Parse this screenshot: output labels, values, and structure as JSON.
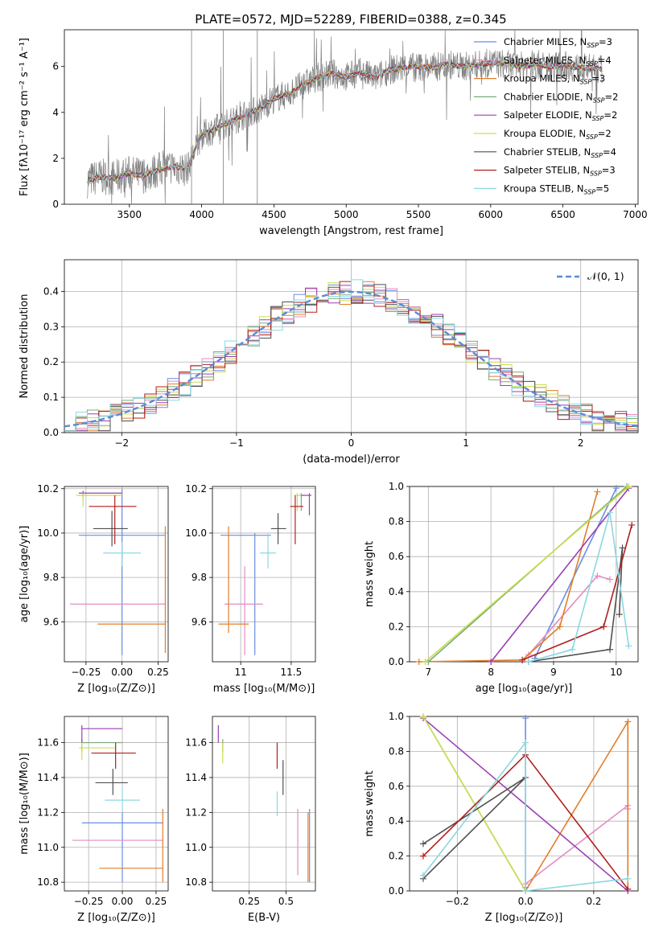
{
  "figure_title": "PLATE=0572, MJD=52289, FIBERID=0388, z=0.345",
  "colors": {
    "Chabrier MILES": "#6a8ee0",
    "Salpeter MILES": "#e58bc2",
    "Kroupa MILES": "#e07e2a",
    "Chabrier ELODIE": "#7aa87a",
    "Salpeter ELODIE": "#9a3fb3",
    "Kroupa ELODIE": "#c9e04e",
    "Chabrier STELIB": "#505050",
    "Salpeter STELIB": "#b01f1f",
    "Kroupa STELIB": "#8ad8e0",
    "normal": "#5b8ad8",
    "spectrum": "#808080"
  },
  "legend_spectrum": [
    {
      "name": "Chabrier MILES",
      "nssp": "3"
    },
    {
      "name": "Salpeter MILES",
      "nssp": "4"
    },
    {
      "name": "Kroupa MILES",
      "nssp": "3"
    },
    {
      "name": "Chabrier ELODIE",
      "nssp": "2"
    },
    {
      "name": "Salpeter ELODIE",
      "nssp": "2"
    },
    {
      "name": "Kroupa ELODIE",
      "nssp": "2"
    },
    {
      "name": "Chabrier STELIB",
      "nssp": "4"
    },
    {
      "name": "Salpeter STELIB",
      "nssp": "3"
    },
    {
      "name": "Kroupa STELIB",
      "nssp": "5"
    }
  ],
  "legend_normal": "𝒩(0, 1)",
  "chart_data": [
    {
      "id": "spectrum",
      "type": "line",
      "xlabel": "wavelength [Angstrom, rest frame]",
      "ylabel": "Flux [fλ10⁻¹⁷ erg cm⁻² s⁻¹ A⁻¹]",
      "xlim": [
        3050,
        7020
      ],
      "ylim": [
        0,
        7.6
      ],
      "xticks": [
        3500,
        4000,
        4500,
        5000,
        5500,
        6000,
        6500,
        7000
      ],
      "yticks": [
        0,
        2,
        4,
        6
      ],
      "continuum": [
        [
          3210,
          1.05
        ],
        [
          3300,
          1.2
        ],
        [
          3400,
          1.15
        ],
        [
          3500,
          1.35
        ],
        [
          3600,
          1.25
        ],
        [
          3700,
          1.5
        ],
        [
          3800,
          1.65
        ],
        [
          3900,
          1.5
        ],
        [
          3950,
          2.3
        ],
        [
          4000,
          3.0
        ],
        [
          4100,
          3.3
        ],
        [
          4200,
          3.6
        ],
        [
          4300,
          3.9
        ],
        [
          4400,
          4.15
        ],
        [
          4500,
          4.6
        ],
        [
          4600,
          4.8
        ],
        [
          4700,
          5.2
        ],
        [
          4800,
          5.5
        ],
        [
          4900,
          5.7
        ],
        [
          5000,
          5.55
        ],
        [
          5100,
          5.75
        ],
        [
          5200,
          5.5
        ],
        [
          5300,
          5.85
        ],
        [
          5400,
          5.95
        ],
        [
          5500,
          6.0
        ],
        [
          5600,
          5.95
        ],
        [
          5700,
          6.1
        ],
        [
          5800,
          6.0
        ],
        [
          5900,
          6.05
        ],
        [
          6000,
          6.15
        ],
        [
          6100,
          6.1
        ],
        [
          6200,
          6.0
        ],
        [
          6300,
          6.1
        ],
        [
          6400,
          6.0
        ],
        [
          6500,
          6.05
        ],
        [
          6600,
          5.95
        ],
        [
          6700,
          5.9
        ],
        [
          6770,
          5.9
        ]
      ]
    },
    {
      "id": "residuals",
      "type": "line",
      "xlabel": "(data-model)/error",
      "ylabel": "Normed distribution",
      "xlim": [
        -2.5,
        2.5
      ],
      "ylim": [
        0,
        0.49
      ],
      "xticks": [
        -2,
        -1,
        0,
        1,
        2
      ],
      "yticks": [
        0.0,
        0.1,
        0.2,
        0.3,
        0.4
      ],
      "series": [
        {
          "name": "𝒩(0, 1)",
          "values": "standard normal pdf"
        }
      ]
    },
    {
      "id": "age_vs_Z",
      "type": "scatter",
      "xlabel": "Z [log₁₀(Z/Z⊙)]",
      "ylabel": "age  [log₁₀(age/yr)]",
      "xlim": [
        -0.4,
        0.32
      ],
      "ylim": [
        9.42,
        10.21
      ],
      "xticks": [
        -0.25,
        0.0,
        0.25
      ],
      "yticks": [
        9.6,
        9.8,
        10.0,
        10.2
      ],
      "xticklabels": [
        "−0.25",
        "0.00",
        "0.25"
      ],
      "points": [
        {
          "m": "Chabrier MILES",
          "x": 0.0,
          "y": 9.99,
          "xl": -0.3,
          "xh": 0.3,
          "yl": 9.45,
          "yh": 10.2
        },
        {
          "m": "Salpeter MILES",
          "x": 0.0,
          "y": 9.68,
          "xl": -0.36,
          "xh": 0.3,
          "yl": 9.68,
          "yh": 9.68
        },
        {
          "m": "Kroupa MILES",
          "x": 0.3,
          "y": 9.59,
          "xl": -0.17,
          "xh": 0.3,
          "yl": 9.46,
          "yh": 10.03
        },
        {
          "m": "Chabrier ELODIE",
          "x": -0.27,
          "y": 10.17,
          "xl": -0.3,
          "xh": 0.0,
          "yl": 10.16,
          "yh": 10.18
        },
        {
          "m": "Salpeter ELODIE",
          "x": -0.27,
          "y": 10.18,
          "xl": -0.3,
          "xh": 0.0,
          "yl": 10.17,
          "yh": 10.19
        },
        {
          "m": "Kroupa ELODIE",
          "x": -0.27,
          "y": 10.17,
          "xl": -0.32,
          "xh": 0.0,
          "yl": 10.12,
          "yh": 10.18
        },
        {
          "m": "Chabrier STELIB",
          "x": -0.07,
          "y": 10.02,
          "xl": -0.2,
          "xh": 0.04,
          "yl": 9.94,
          "yh": 10.1
        },
        {
          "m": "Salpeter STELIB",
          "x": -0.05,
          "y": 10.12,
          "xl": -0.23,
          "xh": 0.1,
          "yl": 9.95,
          "yh": 10.17
        },
        {
          "m": "Kroupa STELIB",
          "x": 0.0,
          "y": 9.91,
          "xl": -0.13,
          "xh": 0.13,
          "yl": 9.85,
          "yh": 9.96
        }
      ]
    },
    {
      "id": "age_vs_mass",
      "type": "scatter",
      "xlabel": "mass [log₁₀(M/M⊙)]",
      "ylabel": "",
      "xlim": [
        10.72,
        11.74
      ],
      "ylim": [
        9.42,
        10.21
      ],
      "xticks": [
        11.0,
        11.5
      ],
      "yticks": [
        9.6,
        9.8,
        10.0,
        10.2
      ],
      "points": [
        {
          "m": "Chabrier MILES",
          "x": 11.14,
          "y": 9.99,
          "xl": 10.8,
          "xh": 11.3,
          "yl": 9.45,
          "yh": 10.0
        },
        {
          "m": "Salpeter MILES",
          "x": 11.04,
          "y": 9.68,
          "xl": 10.84,
          "xh": 11.22,
          "yl": 9.45,
          "yh": 9.85
        },
        {
          "m": "Kroupa MILES",
          "x": 10.88,
          "y": 9.59,
          "xl": 10.78,
          "xh": 11.08,
          "yl": 9.55,
          "yh": 10.03
        },
        {
          "m": "Chabrier ELODIE",
          "x": 11.6,
          "y": 10.17,
          "xl": 11.57,
          "xh": 11.63,
          "yl": 10.1,
          "yh": 10.18
        },
        {
          "m": "Salpeter ELODIE",
          "x": 11.68,
          "y": 10.17,
          "xl": 11.6,
          "xh": 11.7,
          "yl": 10.08,
          "yh": 10.18
        },
        {
          "m": "Kroupa ELODIE",
          "x": 11.56,
          "y": 10.17,
          "xl": 11.53,
          "xh": 11.6,
          "yl": 10.1,
          "yh": 10.18
        },
        {
          "m": "Chabrier STELIB",
          "x": 11.37,
          "y": 10.02,
          "xl": 11.3,
          "xh": 11.45,
          "yl": 9.95,
          "yh": 10.09
        },
        {
          "m": "Salpeter STELIB",
          "x": 11.54,
          "y": 10.12,
          "xl": 11.49,
          "xh": 11.62,
          "yl": 9.95,
          "yh": 10.17
        },
        {
          "m": "Kroupa STELIB",
          "x": 11.27,
          "y": 9.91,
          "xl": 11.19,
          "xh": 11.35,
          "yl": 9.84,
          "yh": 10.0
        }
      ]
    },
    {
      "id": "mass_weight_vs_age",
      "type": "line",
      "xlabel": "age  [log₁₀(age/yr)]",
      "ylabel": "mass weight",
      "xlim": [
        6.7,
        10.35
      ],
      "ylim": [
        0,
        1
      ],
      "xticks": [
        7,
        8,
        9,
        10
      ],
      "yticks": [
        0.0,
        0.2,
        0.4,
        0.6,
        0.8,
        1.0
      ],
      "series": [
        {
          "m": "Chabrier MILES",
          "pts": [
            [
              8.7,
              0.02
            ],
            [
              10.0,
              0.99
            ]
          ]
        },
        {
          "m": "Salpeter MILES",
          "pts": [
            [
              8.6,
              0.04
            ],
            [
              9.7,
              0.49
            ],
            [
              9.9,
              0.47
            ]
          ]
        },
        {
          "m": "Kroupa MILES",
          "pts": [
            [
              6.85,
              0.0
            ],
            [
              8.5,
              0.01
            ],
            [
              9.1,
              0.2
            ],
            [
              9.7,
              0.97
            ]
          ]
        },
        {
          "m": "Chabrier ELODIE",
          "pts": [
            [
              7.0,
              0.0
            ],
            [
              10.17,
              1.0
            ]
          ]
        },
        {
          "m": "Salpeter ELODIE",
          "pts": [
            [
              8.0,
              0.0
            ],
            [
              10.2,
              0.99
            ]
          ]
        },
        {
          "m": "Kroupa ELODIE",
          "pts": [
            [
              6.95,
              0.0
            ],
            [
              10.2,
              1.0
            ]
          ]
        },
        {
          "m": "Chabrier STELIB",
          "pts": [
            [
              8.6,
              0.0
            ],
            [
              9.9,
              0.07
            ],
            [
              10.1,
              0.65
            ],
            [
              10.05,
              0.27
            ]
          ]
        },
        {
          "m": "Salpeter STELIB",
          "pts": [
            [
              8.5,
              0.01
            ],
            [
              9.8,
              0.2
            ],
            [
              10.25,
              0.78
            ]
          ]
        },
        {
          "m": "Kroupa STELIB",
          "pts": [
            [
              8.6,
              0.0
            ],
            [
              9.3,
              0.07
            ],
            [
              9.9,
              0.85
            ],
            [
              10.2,
              0.09
            ]
          ]
        }
      ]
    },
    {
      "id": "mass_vs_Z",
      "type": "scatter",
      "xlabel": "Z [log₁₀(Z/Z⊙)]",
      "ylabel": "mass [log₁₀(M/M⊙)]",
      "xlim": [
        -0.43,
        0.34
      ],
      "ylim": [
        10.75,
        11.75
      ],
      "xticks": [
        -0.25,
        0.0,
        0.25
      ],
      "yticks": [
        10.8,
        11.0,
        11.2,
        11.4,
        11.6
      ],
      "xticklabels": [
        "−0.25",
        "0.00",
        "0.25"
      ],
      "points": [
        {
          "m": "Chabrier MILES",
          "x": 0.0,
          "y": 11.14,
          "xl": -0.3,
          "xh": 0.3,
          "yl": 10.8,
          "yh": 11.2
        },
        {
          "m": "Salpeter MILES",
          "x": 0.0,
          "y": 11.04,
          "xl": -0.37,
          "xh": 0.3,
          "yl": 11.04,
          "yh": 11.04
        },
        {
          "m": "Kroupa MILES",
          "x": 0.3,
          "y": 10.88,
          "xl": -0.17,
          "xh": 0.3,
          "yl": 10.8,
          "yh": 11.22
        },
        {
          "m": "Chabrier ELODIE",
          "x": -0.3,
          "y": 11.6,
          "xl": -0.3,
          "xh": 0.0,
          "yl": 11.55,
          "yh": 11.62
        },
        {
          "m": "Salpeter ELODIE",
          "x": -0.3,
          "y": 11.68,
          "xl": -0.3,
          "xh": 0.0,
          "yl": 11.6,
          "yh": 11.7
        },
        {
          "m": "Kroupa ELODIE",
          "x": -0.3,
          "y": 11.57,
          "xl": -0.32,
          "xh": -0.05,
          "yl": 11.5,
          "yh": 11.6
        },
        {
          "m": "Chabrier STELIB",
          "x": -0.07,
          "y": 11.37,
          "xl": -0.2,
          "xh": 0.04,
          "yl": 11.3,
          "yh": 11.45
        },
        {
          "m": "Salpeter STELIB",
          "x": -0.05,
          "y": 11.54,
          "xl": -0.23,
          "xh": 0.1,
          "yl": 11.45,
          "yh": 11.6
        },
        {
          "m": "Kroupa STELIB",
          "x": 0.0,
          "y": 11.27,
          "xl": -0.13,
          "xh": 0.13,
          "yl": 11.2,
          "yh": 11.34
        }
      ]
    },
    {
      "id": "mass_vs_ebv",
      "type": "scatter",
      "xlabel": "E(B-V)",
      "ylabel": "",
      "xlim": [
        0.0,
        0.7
      ],
      "ylim": [
        10.75,
        11.75
      ],
      "xticks": [
        0.25,
        0.5
      ],
      "yticks": [
        10.8,
        11.0,
        11.2,
        11.4,
        11.6
      ],
      "points": [
        {
          "m": "Chabrier MILES",
          "x": 0.66,
          "y": 11.0,
          "xl": 0.66,
          "xh": 0.66,
          "yl": 10.8,
          "yh": 11.22
        },
        {
          "m": "Salpeter MILES",
          "x": 0.58,
          "y": 11.0,
          "xl": 0.58,
          "xh": 0.58,
          "yl": 10.84,
          "yh": 11.22
        },
        {
          "m": "Kroupa MILES",
          "x": 0.65,
          "y": 11.0,
          "xl": 0.65,
          "xh": 0.65,
          "yl": 10.8,
          "yh": 11.2
        },
        {
          "m": "Chabrier ELODIE",
          "x": 0.07,
          "y": 11.6,
          "xl": 0.07,
          "xh": 0.07,
          "yl": 11.55,
          "yh": 11.62
        },
        {
          "m": "Salpeter ELODIE",
          "x": 0.04,
          "y": 11.65,
          "xl": 0.04,
          "xh": 0.04,
          "yl": 11.6,
          "yh": 11.7
        },
        {
          "m": "Kroupa ELODIE",
          "x": 0.07,
          "y": 11.55,
          "xl": 0.07,
          "xh": 0.07,
          "yl": 11.48,
          "yh": 11.6
        },
        {
          "m": "Chabrier STELIB",
          "x": 0.48,
          "y": 11.4,
          "xl": 0.48,
          "xh": 0.48,
          "yl": 11.3,
          "yh": 11.5
        },
        {
          "m": "Salpeter STELIB",
          "x": 0.44,
          "y": 11.5,
          "xl": 0.44,
          "xh": 0.44,
          "yl": 11.45,
          "yh": 11.6
        },
        {
          "m": "Kroupa STELIB",
          "x": 0.44,
          "y": 11.27,
          "xl": 0.44,
          "xh": 0.44,
          "yl": 11.18,
          "yh": 11.32
        }
      ]
    },
    {
      "id": "mass_weight_vs_Z",
      "type": "line",
      "xlabel": "Z [log₁₀(Z/Z⊙)]",
      "ylabel": "mass weight",
      "xlim": [
        -0.34,
        0.33
      ],
      "ylim": [
        0,
        1
      ],
      "xticks": [
        -0.2,
        0.0,
        0.2
      ],
      "yticks": [
        0.0,
        0.2,
        0.4,
        0.6,
        0.8,
        1.0
      ],
      "xticklabels": [
        "−0.2",
        "0.0",
        "0.2"
      ],
      "series": [
        {
          "m": "Chabrier MILES",
          "pts": [
            [
              0.0,
              0.02
            ],
            [
              0.0,
              0.99
            ]
          ]
        },
        {
          "m": "Salpeter MILES",
          "pts": [
            [
              0.0,
              0.04
            ],
            [
              0.3,
              0.49
            ],
            [
              0.3,
              0.47
            ]
          ]
        },
        {
          "m": "Kroupa MILES",
          "pts": [
            [
              0.0,
              0.0
            ],
            [
              0.3,
              0.97
            ],
            [
              0.3,
              0.01
            ]
          ]
        },
        {
          "m": "Chabrier ELODIE",
          "pts": [
            [
              -0.3,
              1.0
            ],
            [
              0.0,
              0.0
            ]
          ]
        },
        {
          "m": "Salpeter ELODIE",
          "pts": [
            [
              -0.3,
              0.99
            ],
            [
              0.3,
              0.0
            ]
          ]
        },
        {
          "m": "Kroupa ELODIE",
          "pts": [
            [
              -0.3,
              1.0
            ],
            [
              0.0,
              0.0
            ]
          ]
        },
        {
          "m": "Chabrier STELIB",
          "pts": [
            [
              -0.3,
              0.07
            ],
            [
              0.0,
              0.65
            ],
            [
              -0.3,
              0.27
            ]
          ]
        },
        {
          "m": "Salpeter STELIB",
          "pts": [
            [
              -0.3,
              0.2
            ],
            [
              0.0,
              0.78
            ],
            [
              0.3,
              0.01
            ]
          ]
        },
        {
          "m": "Kroupa STELIB",
          "pts": [
            [
              -0.3,
              0.09
            ],
            [
              0.0,
              0.85
            ],
            [
              0.0,
              0.0
            ],
            [
              0.3,
              0.07
            ]
          ]
        }
      ]
    }
  ]
}
